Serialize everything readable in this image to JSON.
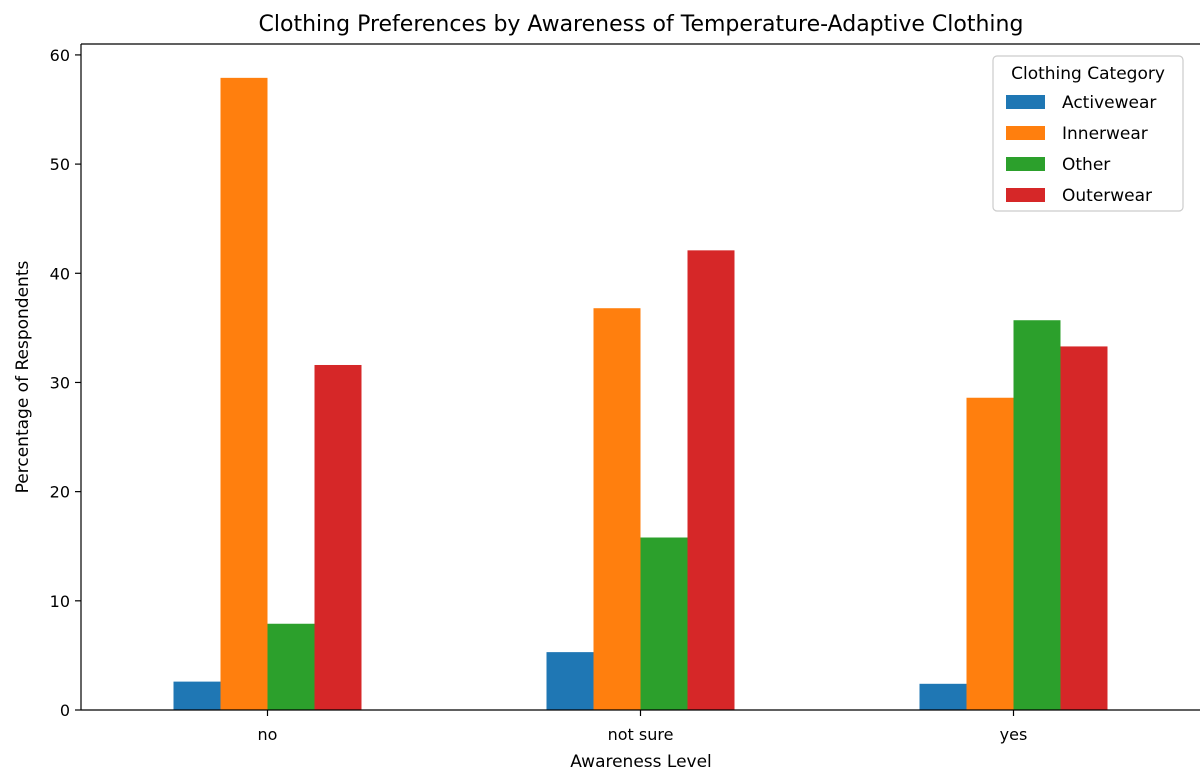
{
  "chart_data": {
    "type": "bar",
    "title": "Clothing Preferences by Awareness of Temperature-Adaptive Clothing",
    "xlabel": "Awareness Level",
    "ylabel": "Percentage of Respondents",
    "categories": [
      "no",
      "not sure",
      "yes"
    ],
    "ylim": [
      0,
      61
    ],
    "yticks": [
      0,
      10,
      20,
      30,
      40,
      50,
      60
    ],
    "legend": {
      "title": "Clothing Category",
      "placement": "top-right"
    },
    "series": [
      {
        "name": "Activewear",
        "color": "#1f77b4",
        "values": [
          2.6,
          5.3,
          2.4
        ]
      },
      {
        "name": "Innerwear",
        "color": "#ff7f0e",
        "values": [
          57.9,
          36.8,
          28.6
        ]
      },
      {
        "name": "Other",
        "color": "#2ca02c",
        "values": [
          7.9,
          15.8,
          35.7
        ]
      },
      {
        "name": "Outerwear",
        "color": "#d62728",
        "values": [
          31.6,
          42.1,
          33.3
        ]
      }
    ]
  }
}
